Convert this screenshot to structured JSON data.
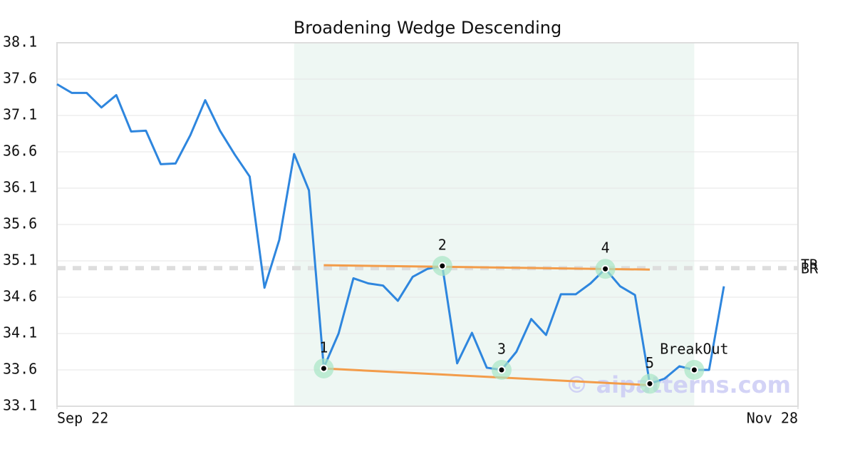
{
  "chart_data": {
    "type": "line",
    "title": "Broadening Wedge Descending",
    "x": [
      0,
      1,
      2,
      3,
      4,
      5,
      6,
      7,
      8,
      9,
      10,
      11,
      12,
      13,
      14,
      15,
      16,
      17,
      18,
      19,
      20,
      21,
      22,
      23,
      24,
      25,
      26,
      27,
      28,
      29,
      30,
      31,
      32,
      33,
      34,
      35,
      36,
      37,
      38,
      39,
      40,
      41,
      42,
      43,
      44,
      45
    ],
    "series": [
      {
        "color": "#2e86de",
        "values": [
          37.53,
          37.41,
          37.41,
          37.21,
          37.38,
          36.88,
          36.89,
          36.43,
          36.44,
          36.83,
          37.31,
          36.89,
          36.56,
          36.26,
          34.73,
          35.39,
          36.57,
          36.07,
          33.63,
          34.1,
          34.86,
          34.79,
          34.76,
          34.55,
          34.88,
          34.99,
          35.03,
          33.69,
          34.11,
          33.63,
          33.6,
          33.85,
          34.3,
          34.08,
          34.64,
          34.64,
          34.79,
          34.99,
          34.75,
          34.63,
          33.41,
          33.48,
          33.65,
          33.6,
          33.6,
          34.75
        ]
      }
    ],
    "xlim": [
      0,
      50
    ],
    "xticks": [
      {
        "value": 0,
        "label": "Sep 22"
      },
      {
        "value": 50,
        "label": "Nov 28"
      }
    ],
    "ylim": [
      33.1,
      38.1
    ],
    "yticks": [
      33.1,
      33.6,
      34.1,
      34.6,
      35.1,
      35.6,
      36.1,
      36.6,
      37.1,
      37.6,
      38.1
    ],
    "grid": true,
    "shade_x": [
      16,
      43
    ],
    "trend_lines": [
      {
        "color": "#f39c4a",
        "x": [
          18,
          40
        ],
        "values": [
          35.04,
          34.98
        ]
      },
      {
        "color": "#f39c4a",
        "x": [
          18,
          40
        ],
        "values": [
          33.62,
          33.39
        ]
      }
    ],
    "points": {
      "x": [
        18,
        26,
        30,
        37,
        40,
        43
      ],
      "values": [
        33.62,
        35.03,
        33.6,
        34.99,
        33.41,
        33.6
      ],
      "labels": [
        "1",
        "2",
        "3",
        "4",
        "5",
        "BreakOut"
      ]
    },
    "level": {
      "value": 35.0,
      "labels": [
        "TR",
        "BR"
      ]
    },
    "watermark": "© aipatterns.com"
  }
}
